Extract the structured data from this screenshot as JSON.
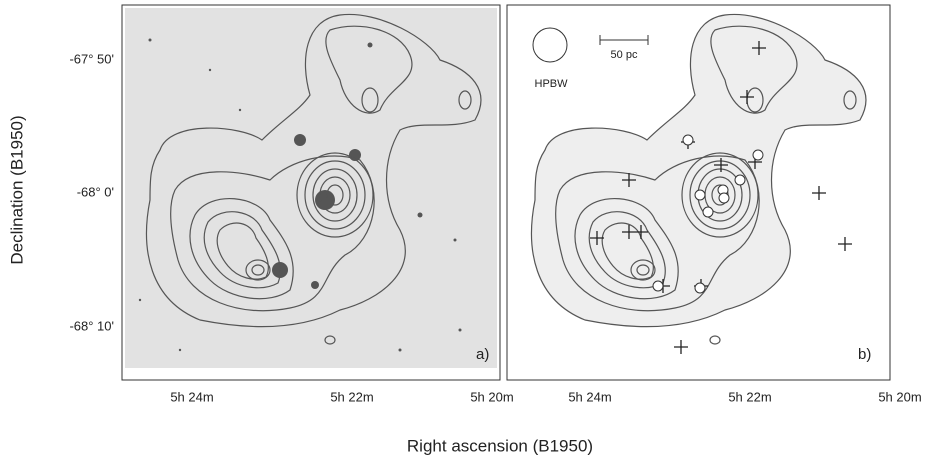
{
  "axes": {
    "y_label": "Declination (B1950)",
    "x_label": "Right ascension (B1950)"
  },
  "panels": [
    {
      "label": "a)",
      "x_ticks": [
        "5h 24m",
        "5h 22m",
        "5h 20m"
      ],
      "y_ticks": [
        "-67° 50'",
        "-68° 0'",
        "-68° 10'"
      ]
    },
    {
      "label": "b)",
      "x_ticks": [
        "5h 24m",
        "5h 22m",
        "5h 20m"
      ],
      "beam_label": "HPBW",
      "scale_label": "50 pc"
    }
  ]
}
